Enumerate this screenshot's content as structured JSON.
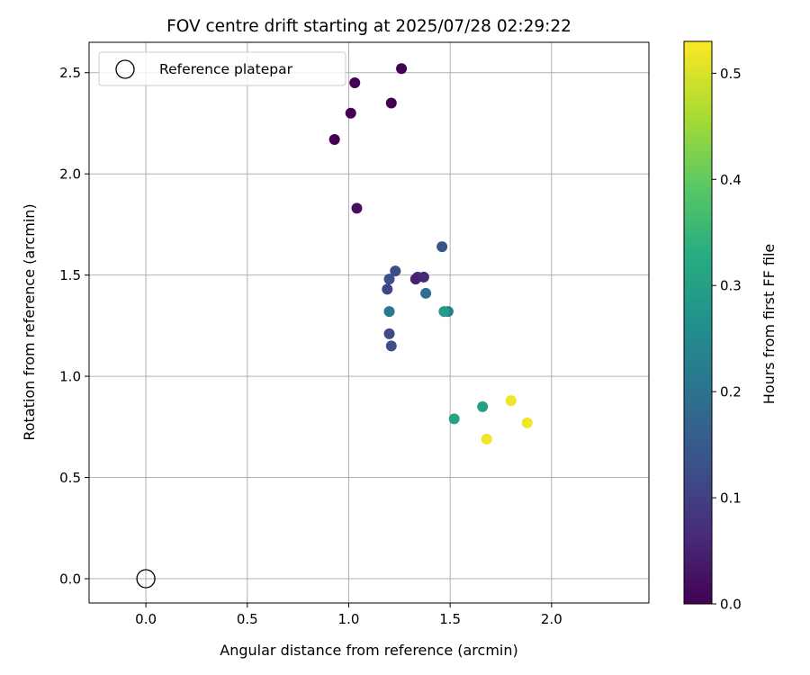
{
  "chart_data": {
    "type": "scatter",
    "title": "FOV centre drift starting at 2025/07/28 02:29:22",
    "xlabel": "Angular distance from reference (arcmin)",
    "ylabel": "Rotation from reference (arcmin)",
    "xlim": [
      -0.28,
      2.48
    ],
    "ylim": [
      -0.12,
      2.65
    ],
    "xticks": [
      0.0,
      0.5,
      1.0,
      1.5,
      2.0
    ],
    "xtick_labels": [
      "0.0",
      "0.5",
      "1.0",
      "1.5",
      "2.0"
    ],
    "yticks": [
      0.0,
      0.5,
      1.0,
      1.5,
      2.0,
      2.5
    ],
    "ytick_labels": [
      "0.0",
      "0.5",
      "1.0",
      "1.5",
      "2.0",
      "2.5"
    ],
    "grid": true,
    "legend": {
      "position": "top-left",
      "label": "Reference platepar"
    },
    "reference_point": {
      "x": 0.0,
      "y": 0.0,
      "marker": "hollow-circle"
    },
    "colorbar": {
      "label": "Hours from first FF file",
      "range": [
        0.0,
        0.53
      ],
      "ticks": [
        0.0,
        0.1,
        0.2,
        0.3,
        0.4,
        0.5
      ],
      "tick_labels": [
        "0.0",
        "0.1",
        "0.2",
        "0.3",
        "0.4",
        "0.5"
      ],
      "colormap": "viridis"
    },
    "series": [
      {
        "points": [
          {
            "x": 1.26,
            "y": 2.52,
            "hours": 0.0
          },
          {
            "x": 1.03,
            "y": 2.45,
            "hours": 0.0
          },
          {
            "x": 1.21,
            "y": 2.35,
            "hours": 0.0
          },
          {
            "x": 1.01,
            "y": 2.3,
            "hours": 0.0
          },
          {
            "x": 0.93,
            "y": 2.17,
            "hours": 0.0
          },
          {
            "x": 1.04,
            "y": 1.83,
            "hours": 0.02
          },
          {
            "x": 1.46,
            "y": 1.64,
            "hours": 0.14
          },
          {
            "x": 1.23,
            "y": 1.52,
            "hours": 0.12
          },
          {
            "x": 1.2,
            "y": 1.48,
            "hours": 0.13
          },
          {
            "x": 1.34,
            "y": 1.49,
            "hours": 0.07
          },
          {
            "x": 1.37,
            "y": 1.49,
            "hours": 0.06
          },
          {
            "x": 1.33,
            "y": 1.48,
            "hours": 0.05
          },
          {
            "x": 1.19,
            "y": 1.43,
            "hours": 0.11
          },
          {
            "x": 1.38,
            "y": 1.41,
            "hours": 0.19
          },
          {
            "x": 1.2,
            "y": 1.32,
            "hours": 0.21
          },
          {
            "x": 1.49,
            "y": 1.32,
            "hours": 0.23
          },
          {
            "x": 1.47,
            "y": 1.32,
            "hours": 0.29
          },
          {
            "x": 1.2,
            "y": 1.21,
            "hours": 0.12
          },
          {
            "x": 1.21,
            "y": 1.15,
            "hours": 0.13
          },
          {
            "x": 1.66,
            "y": 0.85,
            "hours": 0.3
          },
          {
            "x": 1.52,
            "y": 0.79,
            "hours": 0.31
          },
          {
            "x": 1.8,
            "y": 0.88,
            "hours": 0.52
          },
          {
            "x": 1.88,
            "y": 0.77,
            "hours": 0.52
          },
          {
            "x": 1.68,
            "y": 0.69,
            "hours": 0.52
          }
        ]
      }
    ]
  }
}
